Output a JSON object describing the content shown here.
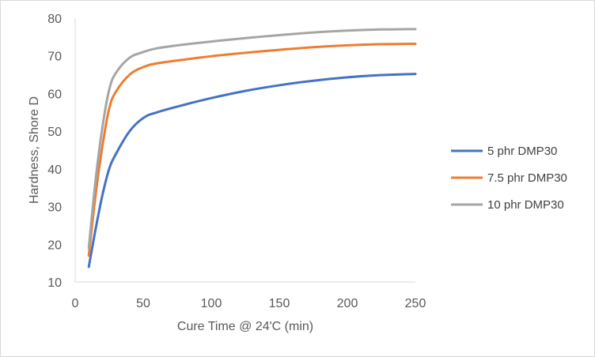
{
  "chart_data": {
    "type": "line",
    "title": "",
    "xlabel": "Cure Time @ 24'C (min)",
    "ylabel": "Hardness, Shore D",
    "xlim": [
      0,
      250
    ],
    "ylim": [
      10,
      80
    ],
    "xticks": [
      0,
      50,
      100,
      150,
      200,
      250
    ],
    "yticks": [
      10,
      20,
      30,
      40,
      50,
      60,
      70,
      80
    ],
    "grid": false,
    "legend_position": "right",
    "x": [
      10,
      15,
      20,
      25,
      30,
      40,
      50,
      60,
      80,
      100,
      125,
      150,
      175,
      200,
      225,
      250
    ],
    "series": [
      {
        "name": "5 phr DMP30",
        "color": "#4472c4",
        "values": [
          14,
          24,
          33,
          40,
          44,
          50,
          53.5,
          55,
          57,
          58.8,
          60.7,
          62.2,
          63.4,
          64.3,
          64.9,
          65.2
        ]
      },
      {
        "name": "7.5 phr DMP30",
        "color": "#ed7d31",
        "values": [
          17,
          33,
          46,
          56,
          60.5,
          65,
          67,
          68,
          69,
          69.9,
          70.8,
          71.6,
          72.3,
          72.8,
          73.1,
          73.2
        ]
      },
      {
        "name": "10 phr DMP30",
        "color": "#a5a5a5",
        "values": [
          19,
          37,
          51,
          61,
          65.5,
          69.5,
          71,
          72,
          73,
          73.8,
          74.7,
          75.5,
          76.2,
          76.7,
          77,
          77.1
        ]
      }
    ]
  }
}
